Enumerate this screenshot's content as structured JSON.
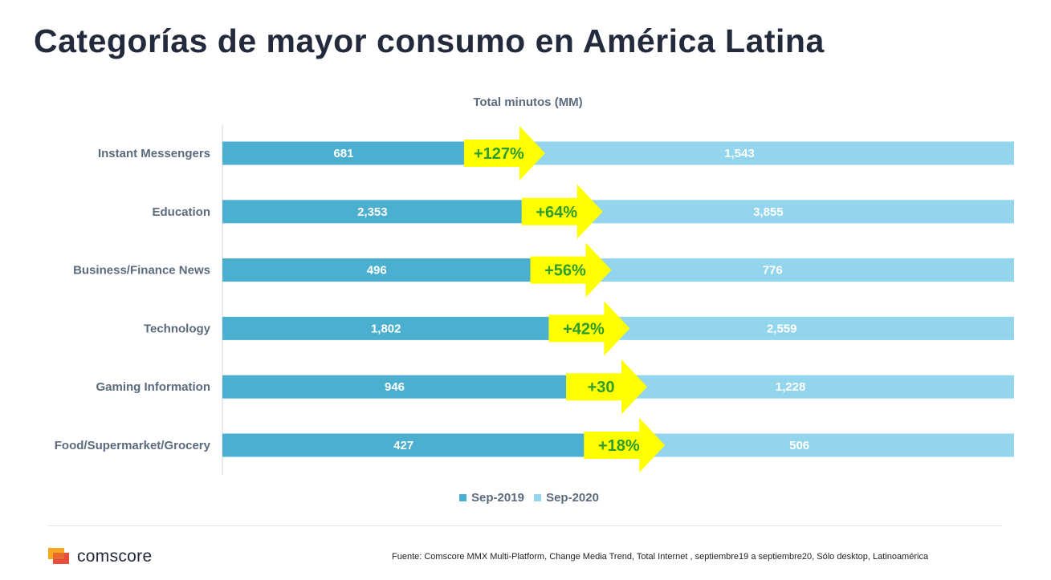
{
  "page": {
    "title": "Categorías de mayor consumo en América Latina",
    "logo_text": "comscore",
    "source": "Fuente: Comscore MMX Multi-Platform, Change Media Trend, Total Internet , septiembre19 a septiembre20, Sólo desktop, Latinoamérica"
  },
  "chart_data": {
    "type": "bar",
    "orientation": "horizontal",
    "stacked": "100%",
    "title": "Total minutos (MM)",
    "categories": [
      "Instant Messengers",
      "Education",
      "Business/Finance News",
      "Technology",
      "Gaming Information",
      "Food/Supermarket/Grocery"
    ],
    "series": [
      {
        "name": "Sep-2019",
        "values": [
          681,
          2353,
          496,
          1802,
          946,
          427
        ],
        "labels": [
          "681",
          "2,353",
          "496",
          "1,802",
          "946",
          "427"
        ],
        "color": "#4bafd0"
      },
      {
        "name": "Sep-2020",
        "values": [
          1543,
          3855,
          776,
          2559,
          1228,
          506
        ],
        "labels": [
          "1,543",
          "3,855",
          "776",
          "2,559",
          "1,228",
          "506"
        ],
        "color": "#92d5ec"
      }
    ],
    "annotations": [
      "+127%",
      "+64%",
      "+56%",
      "+42%",
      "+30",
      "+18%"
    ],
    "annotation_color": "#ffff00",
    "annotation_text_color": "#2e9d2e",
    "legend": "bottom",
    "grid": false
  }
}
